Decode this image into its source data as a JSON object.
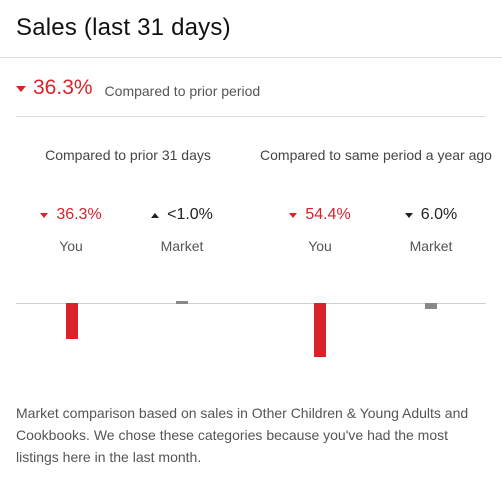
{
  "header": {
    "title": "Sales (last 31 days)"
  },
  "summary": {
    "change": "36.3%",
    "direction": "down",
    "label": "Compared to prior period"
  },
  "panels": [
    {
      "title": "Compared to prior 31 days",
      "you": {
        "value": "36.3%",
        "direction": "down",
        "label": "You",
        "change_pct": -36.3
      },
      "market": {
        "value": "<1.0%",
        "direction": "up",
        "label": "Market",
        "change_pct": 1.0
      }
    },
    {
      "title": "Compared to same period a year ago",
      "you": {
        "value": "54.4%",
        "direction": "down",
        "label": "You",
        "change_pct": -54.4
      },
      "market": {
        "value": "6.0%",
        "direction": "down",
        "label": "Market",
        "change_pct": -6.0
      }
    }
  ],
  "footnote": "Market comparison based on sales in Other Children & Young Adults and Cookbooks. We chose these categories because you've had the most listings here in the last month.",
  "colors": {
    "negative": "#d9222a",
    "market_bar": "#888888",
    "baseline": "#cfcfcf"
  }
}
